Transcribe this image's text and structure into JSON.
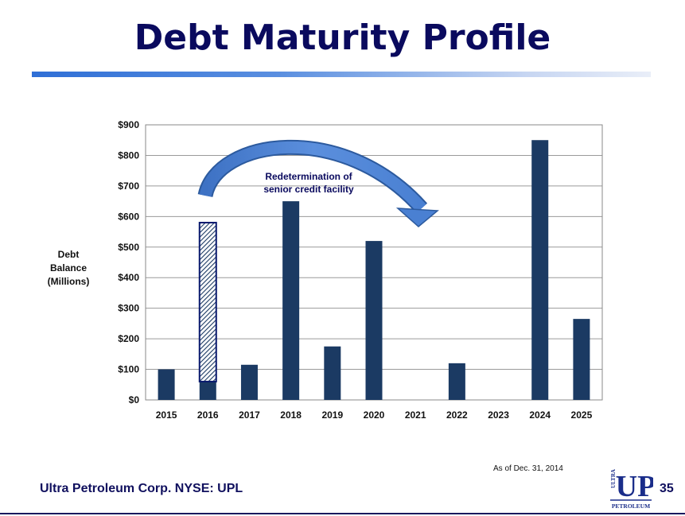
{
  "page": {
    "title": "Debt Maturity Profile",
    "as_of": "As of Dec. 31, 2014",
    "footer": "Ultra Petroleum Corp. NYSE: UPL",
    "page_number": "35",
    "logo": {
      "top_text": "ULTRA",
      "main_text": "UP",
      "bottom_text": "PETROLEUM"
    },
    "colors": {
      "title": "#0a0a5e",
      "bar": "#1b3a63",
      "arrow": "#4a7fd0",
      "annotation": "#0a0a5e"
    }
  },
  "chart_data": {
    "type": "bar",
    "categories": [
      "2015",
      "2016",
      "2017",
      "2018",
      "2019",
      "2020",
      "2021",
      "2022",
      "2023",
      "2024",
      "2025"
    ],
    "values": [
      100,
      60,
      115,
      650,
      175,
      520,
      0,
      120,
      0,
      850,
      265
    ],
    "ylabel_lines": [
      "Debt",
      "Balance",
      "(Millions)"
    ],
    "ylim": [
      0,
      900
    ],
    "yticks": [
      0,
      100,
      200,
      300,
      400,
      500,
      600,
      700,
      800,
      900
    ],
    "ytick_labels": [
      "$0",
      "$100",
      "$200",
      "$300",
      "$400",
      "$500",
      "$600",
      "$700",
      "$800",
      "$900"
    ],
    "grid": true,
    "legend": "none",
    "highlight": {
      "category": "2016",
      "from": 60,
      "to": 580,
      "style": "hatched"
    },
    "annotation_lines": [
      "Redetermination of",
      "senior credit facility"
    ]
  }
}
